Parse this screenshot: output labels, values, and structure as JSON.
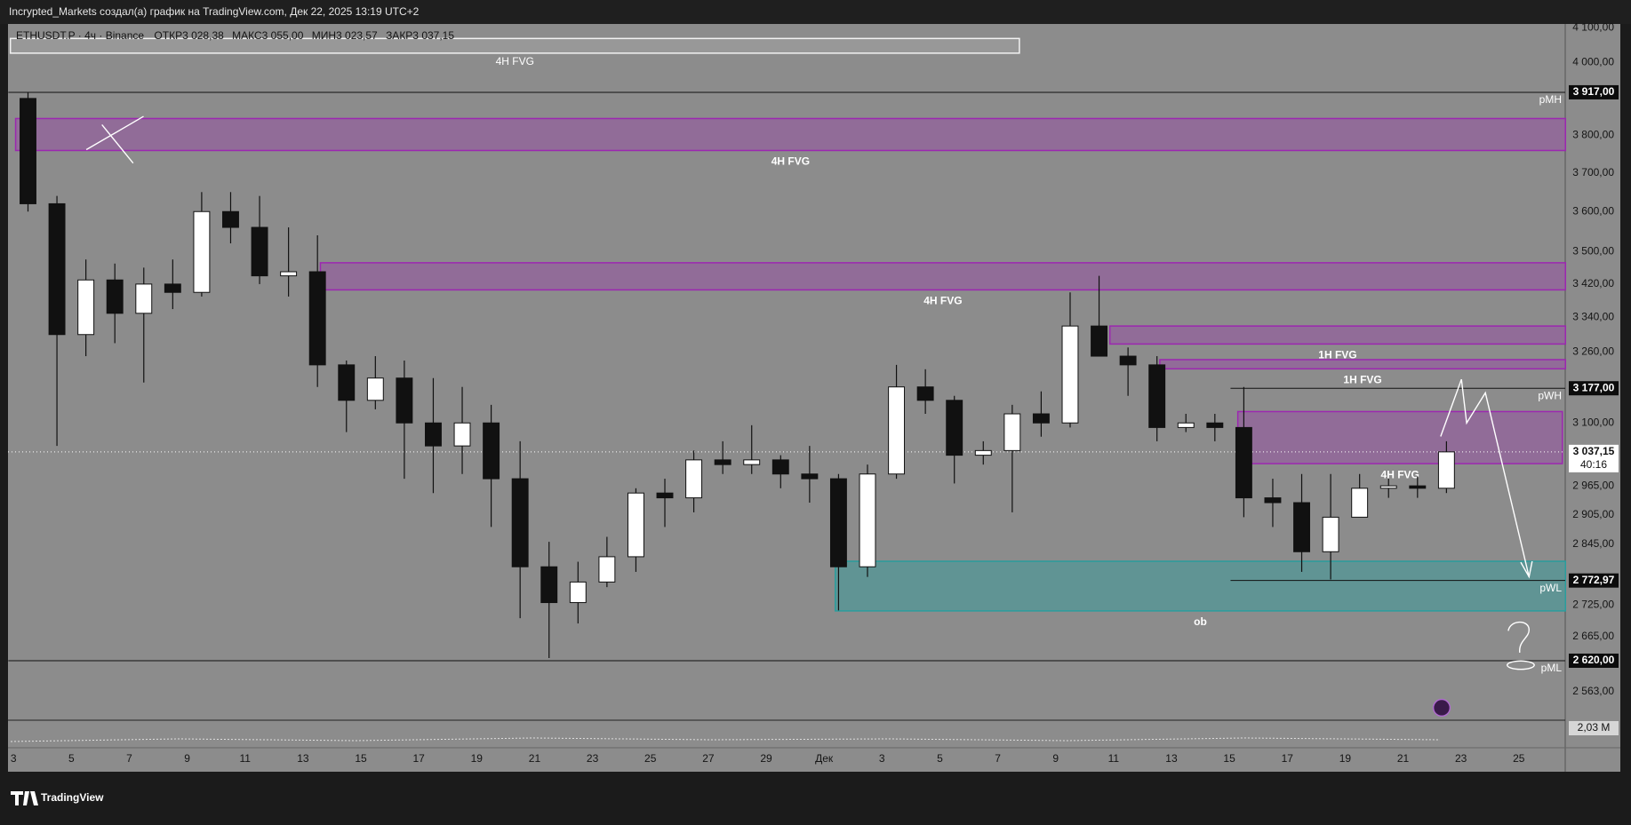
{
  "header": {
    "text": "Incrypted_Markets создал(а) график на TradingView.com, Дек 22, 2025 13:19 UTC+2"
  },
  "chart_data": {
    "type": "candlestick",
    "legend": {
      "symbol": "ETHUSDT.P · 4ч · Binance",
      "ohlc": [
        "ОТКР3 028,38",
        "МАКС3 055,00",
        "МИН3 023,57",
        "ЗАКР3 037,15"
      ]
    },
    "categories": [
      "3",
      null,
      "5",
      null,
      "7",
      null,
      "9",
      null,
      "11",
      null,
      "13",
      null,
      "15",
      null,
      "17",
      null,
      "19",
      null,
      "21",
      null,
      "23",
      null,
      "25",
      null,
      "27",
      null,
      "29",
      null,
      "Дек",
      null,
      "3",
      null,
      "5",
      null,
      "7",
      null,
      "9",
      null,
      "11",
      null,
      "13",
      null,
      "15",
      null,
      "17",
      null,
      "19",
      null,
      "21",
      null,
      "23",
      null,
      "25"
    ],
    "open": [
      3900,
      3620,
      3300,
      3430,
      3350,
      3420,
      3400,
      3600,
      3560,
      3440,
      3450,
      3230,
      3150,
      3200,
      3100,
      3050,
      3100,
      2980,
      2800,
      2730,
      2770,
      2820,
      2950,
      2940,
      3020,
      3010,
      3020,
      2990,
      2980,
      2800,
      2990,
      3180,
      3150,
      3030,
      3040,
      3120,
      3100,
      3320,
      3250,
      3230,
      3090,
      3100,
      3090,
      2940,
      2930,
      2830,
      2900,
      2960,
      2965,
      2960,
      null,
      null,
      null
    ],
    "high": [
      3917,
      3640,
      3480,
      3470,
      3460,
      3480,
      3650,
      3650,
      3640,
      3560,
      3540,
      3240,
      3250,
      3240,
      3200,
      3180,
      3140,
      3060,
      2850,
      2810,
      2860,
      2960,
      2980,
      3040,
      3060,
      3095,
      3030,
      3050,
      2990,
      3010,
      3230,
      3220,
      3160,
      3060,
      3140,
      3170,
      3400,
      3440,
      3270,
      3250,
      3120,
      3120,
      3180,
      2980,
      2990,
      2990,
      2990,
      2980,
      2985,
      3060,
      null,
      null,
      null
    ],
    "low": [
      3600,
      3050,
      3250,
      3280,
      3190,
      3360,
      3390,
      3520,
      3420,
      3390,
      3180,
      3080,
      3130,
      2980,
      2950,
      2990,
      2880,
      2700,
      2625,
      2690,
      2760,
      2790,
      2880,
      2910,
      2990,
      2990,
      2960,
      2930,
      2715,
      2780,
      2980,
      3120,
      2970,
      3010,
      2910,
      3070,
      3090,
      3250,
      3160,
      3060,
      3080,
      3060,
      2900,
      2880,
      2790,
      2775,
      2900,
      2940,
      2940,
      2950,
      null,
      null,
      null
    ],
    "close": [
      3620,
      3300,
      3430,
      3350,
      3420,
      3400,
      3600,
      3560,
      3440,
      3450,
      3230,
      3150,
      3200,
      3100,
      3050,
      3100,
      2980,
      2800,
      2730,
      2770,
      2820,
      2950,
      2940,
      3020,
      3010,
      3020,
      2990,
      2980,
      2800,
      2990,
      3180,
      3150,
      3030,
      3040,
      3120,
      3100,
      3320,
      3250,
      3230,
      3090,
      3100,
      3090,
      2940,
      2930,
      2830,
      2900,
      2960,
      2965,
      2960,
      3037.15,
      null,
      null,
      null
    ],
    "up_color": "#ffffff",
    "down_color": "#111111",
    "ylim": [
      2512,
      4111
    ],
    "log_scale": true,
    "yticks": [
      {
        "value": 4100,
        "label": "4 100,00"
      },
      {
        "value": 4000,
        "label": "4 000,00"
      },
      {
        "value": 3800,
        "label": "3 800,00"
      },
      {
        "value": 3700,
        "label": "3 700,00"
      },
      {
        "value": 3600,
        "label": "3 600,00"
      },
      {
        "value": 3500,
        "label": "3 500,00"
      },
      {
        "value": 3420,
        "label": "3 420,00"
      },
      {
        "value": 3340,
        "label": "3 340,00"
      },
      {
        "value": 3260,
        "label": "3 260,00"
      },
      {
        "value": 3100,
        "label": "3 100,00"
      },
      {
        "value": 2965,
        "label": "2 965,00"
      },
      {
        "value": 2905,
        "label": "2 905,00"
      },
      {
        "value": 2845,
        "label": "2 845,00"
      },
      {
        "value": 2725,
        "label": "2 725,00"
      },
      {
        "value": 2665,
        "label": "2 665,00"
      },
      {
        "value": 2563,
        "label": "2 563,00"
      }
    ],
    "last_price": {
      "value": 3037.15,
      "label": "3 037,15",
      "countdown": "40:16"
    },
    "levels": [
      {
        "name": "pMH",
        "value": 3917,
        "label": "3 917,00"
      },
      {
        "name": "pWH",
        "value": 3177,
        "label": "3 177,00"
      },
      {
        "name": "pWL",
        "value": 2772.97,
        "label": "2 772,97"
      },
      {
        "name": "pML",
        "value": 2620,
        "label": "2 620,00"
      }
    ],
    "zones": [
      {
        "label": "4H FVG",
        "top": 4069,
        "bottom": 4027,
        "color": "#f2f2f2"
      },
      {
        "label": "4H FVG",
        "top": 3845,
        "bottom": 3759,
        "color": "#9c27b0"
      },
      {
        "label": "4H FVG",
        "top": 3472,
        "bottom": 3406,
        "color": "#9c27b0"
      },
      {
        "label": "1H FVG",
        "top": 3320,
        "bottom": 3278,
        "color": "#9c27b0"
      },
      {
        "label": "1H FVG",
        "top": 3242,
        "bottom": 3221,
        "color": "#9c27b0"
      },
      {
        "label": "4H FVG",
        "top": 3125,
        "bottom": 3012,
        "color": "#9c27b0"
      },
      {
        "label": "ob",
        "top": 2811,
        "bottom": 2714,
        "color": "#2a9d9d"
      }
    ],
    "volume_label": "2,03 M"
  },
  "footer": {
    "logo": "TradingView"
  }
}
